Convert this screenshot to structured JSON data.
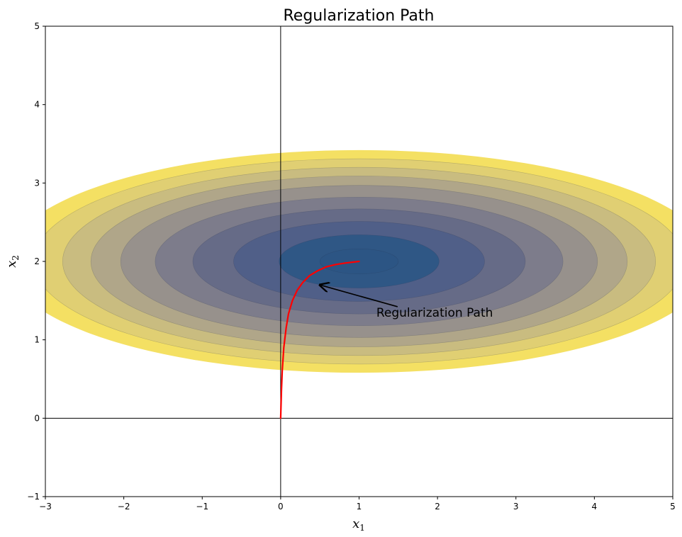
{
  "chart_data": {
    "type": "contour",
    "title": "Regularization Path",
    "xlabel": "x",
    "xlabel_sub": "1",
    "ylabel": "x",
    "ylabel_sub": "2",
    "xlim": [
      -3,
      5
    ],
    "ylim": [
      -1,
      5
    ],
    "xticks": [
      -3,
      -2,
      -1,
      0,
      1,
      2,
      3,
      4,
      5
    ],
    "yticks": [
      -1,
      0,
      1,
      2,
      3,
      4,
      5
    ],
    "grid": false,
    "reference_lines": {
      "x": 0,
      "y": 0
    },
    "contour": {
      "center": [
        1.0,
        2.0
      ],
      "levels": [
        {
          "rx": 4.5,
          "ry": 1.42,
          "color": "#f4e063"
        },
        {
          "rx": 4.15,
          "ry": 1.31,
          "color": "#e0cf73"
        },
        {
          "rx": 3.78,
          "ry": 1.2,
          "color": "#c9bc80"
        },
        {
          "rx": 3.42,
          "ry": 1.09,
          "color": "#b0a689"
        },
        {
          "rx": 3.04,
          "ry": 0.97,
          "color": "#97918c"
        },
        {
          "rx": 2.6,
          "ry": 0.82,
          "color": "#7d7c8b"
        },
        {
          "rx": 2.12,
          "ry": 0.67,
          "color": "#666b87"
        },
        {
          "rx": 1.6,
          "ry": 0.51,
          "color": "#505f88"
        },
        {
          "rx": 1.02,
          "ry": 0.34,
          "color": "#2f5785"
        },
        {
          "rx": 0.5,
          "ry": 0.16,
          "color": "#2c5584"
        }
      ]
    },
    "path": {
      "color": "#ff0000",
      "x": [
        0.0,
        0.01,
        0.02,
        0.04,
        0.07,
        0.1,
        0.15,
        0.21,
        0.28,
        0.37,
        0.47,
        0.58,
        0.7,
        0.83,
        1.0
      ],
      "y": [
        0.0,
        0.35,
        0.6,
        0.9,
        1.15,
        1.33,
        1.5,
        1.63,
        1.73,
        1.82,
        1.88,
        1.93,
        1.96,
        1.98,
        2.0
      ]
    },
    "annotation": {
      "text": "Regularization Path",
      "text_xy": [
        1.22,
        1.35
      ],
      "arrow_to": [
        0.5,
        1.7
      ]
    }
  }
}
